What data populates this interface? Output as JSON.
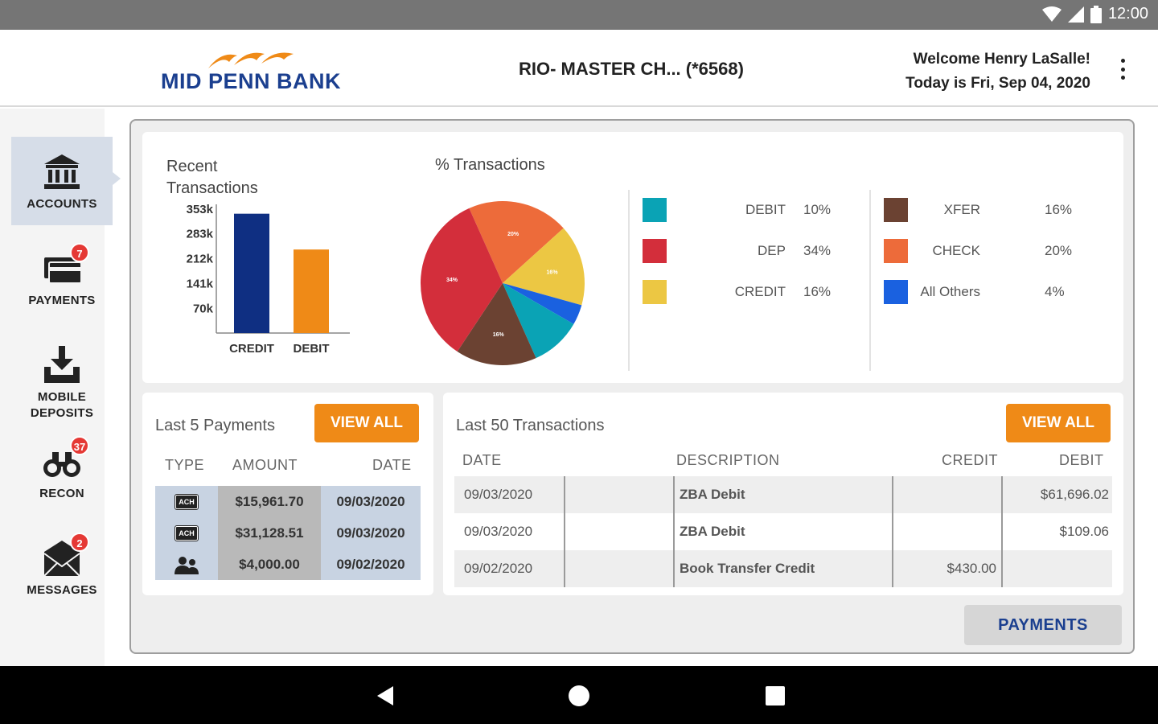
{
  "status_bar": {
    "time": "12:00"
  },
  "header": {
    "logo_text": "MID PENN BANK",
    "account_title": "RIO- MASTER CH...  (*6568)",
    "welcome_line": "Welcome Henry LaSalle!",
    "date_line": "Today is Fri, Sep 04, 2020"
  },
  "sidebar": {
    "items": [
      {
        "label": "ACCOUNTS",
        "icon": "bank-icon",
        "badge": ""
      },
      {
        "label": "PAYMENTS",
        "icon": "credit-card-icon",
        "badge": "7"
      },
      {
        "label": "MOBILE\nDEPOSITS",
        "icon": "download-tray-icon",
        "badge": ""
      },
      {
        "label": "RECON",
        "icon": "binoculars-icon",
        "badge": "37"
      },
      {
        "label": "MESSAGES",
        "icon": "envelope-icon",
        "badge": "2"
      }
    ]
  },
  "colors": {
    "accent_orange": "#ef8a17",
    "brand_blue": "#1b3f8f",
    "credit_bar": "#0f2f82",
    "debit_bar": "#ef8a17"
  },
  "recent_transactions": {
    "title": "Recent\nTransactions"
  },
  "pie_title": "% Transactions",
  "chart_data": [
    {
      "type": "bar",
      "title": "Recent\nTransactions",
      "categories": [
        "CREDIT",
        "DEBIT"
      ],
      "values": [
        340,
        238
      ],
      "ytick_labels": [
        "353k",
        "283k",
        "212k",
        "141k",
        "70k"
      ],
      "yticks": [
        353,
        283,
        212,
        141,
        70
      ],
      "ylim": [
        0,
        353
      ],
      "colors": [
        "#0f2f82",
        "#ef8a17"
      ]
    },
    {
      "type": "pie",
      "title": "% Transactions",
      "labels": [
        "CHECK",
        "CREDIT",
        "All Others",
        "DEBIT",
        "XFER",
        "DEP"
      ],
      "values": [
        20,
        16,
        4,
        10,
        16,
        34
      ],
      "colors": [
        "#ed6b3a",
        "#ecc743",
        "#1a61e0",
        "#0aa3b5",
        "#6b4232",
        "#d32e3b"
      ],
      "slice_labels": [
        "20%",
        "16%",
        "",
        "",
        "16%",
        "34%"
      ],
      "legend": [
        {
          "name": "DEBIT",
          "pct": "10%",
          "color": "#0aa3b5"
        },
        {
          "name": "DEP",
          "pct": "34%",
          "color": "#d32e3b"
        },
        {
          "name": "CREDIT",
          "pct": "16%",
          "color": "#ecc743"
        },
        {
          "name": "XFER",
          "pct": "16%",
          "color": "#6b4232"
        },
        {
          "name": "CHECK",
          "pct": "20%",
          "color": "#ed6b3a"
        },
        {
          "name": "All Others",
          "pct": "4%",
          "color": "#1a61e0"
        }
      ]
    }
  ],
  "payments_card": {
    "title": "Last 5 Payments",
    "view_all": "VIEW ALL",
    "columns": [
      "TYPE",
      "AMOUNT",
      "DATE"
    ],
    "rows": [
      {
        "type": "ACH",
        "type_icon": "ach-icon",
        "amount": "$15,961.70",
        "date": "09/03/2020"
      },
      {
        "type": "ACH",
        "type_icon": "ach-icon",
        "amount": "$31,128.51",
        "date": "09/03/2020"
      },
      {
        "type": "",
        "type_icon": "people-icon",
        "amount": "$4,000.00",
        "date": "09/02/2020"
      }
    ]
  },
  "transactions_card": {
    "title": "Last 50 Transactions",
    "view_all": "VIEW ALL",
    "columns": [
      "DATE",
      "DESCRIPTION",
      "CREDIT",
      "DEBIT"
    ],
    "rows": [
      {
        "date": "09/03/2020",
        "description": "ZBA Debit",
        "credit": "",
        "debit": "$61,696.02"
      },
      {
        "date": "09/03/2020",
        "description": "ZBA Debit",
        "credit": "",
        "debit": "$109.06"
      },
      {
        "date": "09/02/2020",
        "description": "Book Transfer Credit",
        "credit": "$430.00",
        "debit": ""
      }
    ]
  },
  "payments_button": "PAYMENTS"
}
